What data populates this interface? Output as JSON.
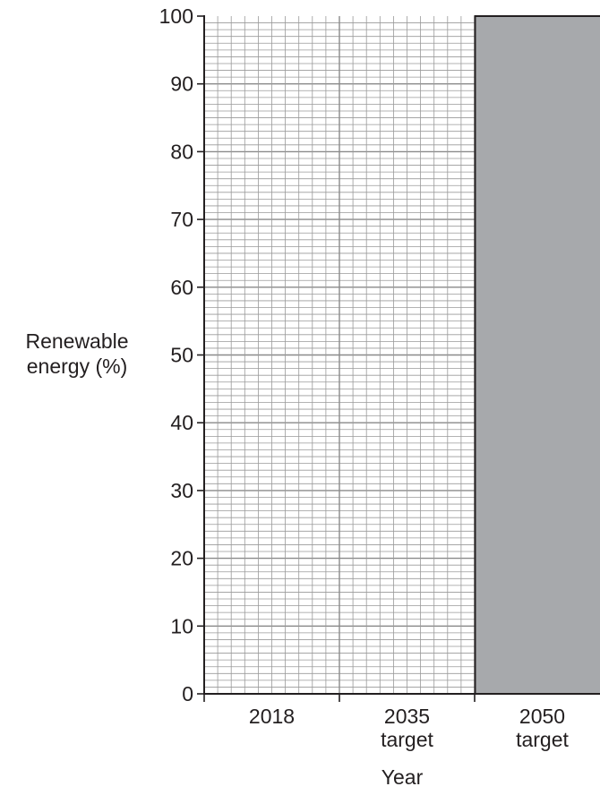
{
  "chart_data": {
    "type": "bar",
    "categories": [
      "2018",
      "2035\ntarget",
      "2050\ntarget"
    ],
    "series": [
      {
        "values": [
          null,
          null,
          100
        ]
      }
    ],
    "xlabel": "Year",
    "ylabel": "Renewable\nenergy (%)",
    "ylim": [
      0,
      100
    ],
    "yticks": [
      0,
      10,
      20,
      30,
      40,
      50,
      60,
      70,
      80,
      90,
      100
    ],
    "grid": true,
    "bar_color": "#a7a9ac"
  }
}
